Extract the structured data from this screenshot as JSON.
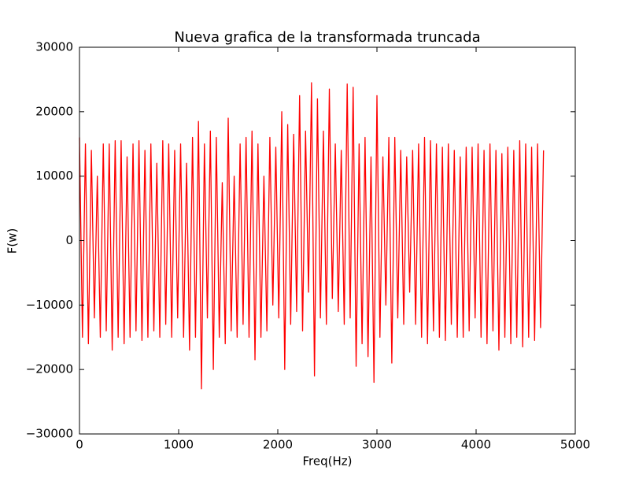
{
  "chart_data": {
    "type": "line",
    "title": "Nueva grafica de la transformada truncada",
    "x_label": "Freq(Hz)",
    "y_label": "F(w)",
    "xlim": [
      0,
      5000
    ],
    "xticks": [
      0,
      1000,
      2000,
      3000,
      4000,
      5000
    ],
    "ylim": [
      -30000,
      30000
    ],
    "yticks": [
      {
        "value": -30000,
        "label": "−30000"
      },
      {
        "value": -20000,
        "label": "−20000"
      },
      {
        "value": -10000,
        "label": "−10000"
      },
      0,
      10000,
      20000,
      30000
    ],
    "grid": false,
    "x": [
      0,
      30,
      60,
      90,
      120,
      150,
      180,
      210,
      240,
      270,
      300,
      330,
      360,
      390,
      420,
      450,
      480,
      510,
      540,
      570,
      600,
      630,
      660,
      690,
      720,
      750,
      780,
      810,
      840,
      870,
      900,
      930,
      960,
      990,
      1020,
      1050,
      1080,
      1110,
      1140,
      1170,
      1200,
      1230,
      1260,
      1290,
      1320,
      1350,
      1380,
      1410,
      1440,
      1470,
      1500,
      1530,
      1560,
      1590,
      1620,
      1650,
      1680,
      1710,
      1740,
      1770,
      1800,
      1830,
      1860,
      1890,
      1920,
      1950,
      1980,
      2010,
      2040,
      2070,
      2100,
      2130,
      2160,
      2190,
      2220,
      2250,
      2280,
      2310,
      2340,
      2370,
      2400,
      2430,
      2460,
      2490,
      2520,
      2550,
      2580,
      2610,
      2640,
      2670,
      2700,
      2730,
      2760,
      2790,
      2820,
      2850,
      2880,
      2910,
      2940,
      2970,
      3000,
      3030,
      3060,
      3090,
      3120,
      3150,
      3180,
      3210,
      3240,
      3270,
      3300,
      3330,
      3360,
      3390,
      3420,
      3450,
      3480,
      3510,
      3540,
      3570,
      3600,
      3630,
      3660,
      3690,
      3720,
      3750,
      3780,
      3810,
      3840,
      3870,
      3900,
      3930,
      3960,
      3990,
      4020,
      4050,
      4080,
      4110,
      4140,
      4170,
      4200,
      4230,
      4260,
      4290,
      4320,
      4350,
      4380,
      4410,
      4440,
      4470,
      4500,
      4530,
      4560,
      4590,
      4620,
      4650,
      4680
    ],
    "series": [
      {
        "color": "#ff0000",
        "values": [
          16000,
          -15000,
          15000,
          -16000,
          14000,
          -12000,
          10000,
          -15000,
          15000,
          -14000,
          15000,
          -17000,
          15500,
          -15000,
          15500,
          -16000,
          13000,
          -15000,
          15000,
          -14000,
          15500,
          -15500,
          14000,
          -15000,
          15000,
          -14000,
          12000,
          -15000,
          15500,
          -13000,
          15000,
          -15000,
          14000,
          -12000,
          15000,
          -15000,
          12000,
          -17000,
          16000,
          -15000,
          18500,
          -23000,
          15000,
          -12000,
          17000,
          -20000,
          16000,
          -15000,
          9000,
          -16000,
          19000,
          -14000,
          10000,
          -15000,
          15000,
          -13000,
          16000,
          -15000,
          17000,
          -18500,
          15000,
          -15000,
          10000,
          -14000,
          16000,
          -10000,
          14500,
          -12000,
          20000,
          -20000,
          18000,
          -13000,
          16500,
          -11000,
          22500,
          -14000,
          17000,
          -8000,
          24500,
          -21000,
          22000,
          -12000,
          17000,
          -13000,
          23500,
          -9000,
          15000,
          -11000,
          14000,
          -13000,
          24300,
          -12000,
          23800,
          -19500,
          15000,
          -16000,
          16000,
          -18000,
          13000,
          -22000,
          22500,
          -15000,
          13000,
          -10000,
          16000,
          -19000,
          16000,
          -12000,
          14000,
          -13000,
          13000,
          -8000,
          14000,
          -13000,
          15000,
          -15000,
          16000,
          -16000,
          15500,
          -14000,
          15000,
          -15000,
          14500,
          -15500,
          15000,
          -13000,
          14000,
          -15000,
          13000,
          -15000,
          14500,
          -14000,
          14500,
          -12000,
          15000,
          -15000,
          14000,
          -16000,
          15000,
          -14000,
          14000,
          -17000,
          13500,
          -15000,
          14500,
          -16000,
          14000,
          -15000,
          15500,
          -16500,
          15000,
          -15000,
          14500,
          -15500,
          15000,
          -13500,
          14000
        ]
      }
    ]
  }
}
